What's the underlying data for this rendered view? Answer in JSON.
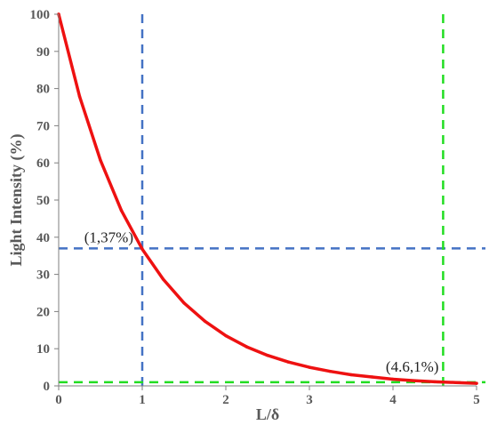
{
  "chart_data": {
    "type": "line",
    "xlabel": "L/δ",
    "ylabel": "Light Intensity  (%)",
    "xlim": [
      0,
      5
    ],
    "ylim": [
      0,
      100
    ],
    "x_ticks": [
      "0",
      "1",
      "2",
      "3",
      "4",
      "5"
    ],
    "y_ticks": [
      "0",
      "10",
      "20",
      "30",
      "40",
      "50",
      "60",
      "70",
      "80",
      "90",
      "100"
    ],
    "grid": false,
    "series": [
      {
        "color": "#ee1111",
        "x": [
          0,
          0.25,
          0.5,
          0.75,
          1,
          1.25,
          1.5,
          1.75,
          2,
          2.25,
          2.5,
          2.75,
          3,
          3.25,
          3.5,
          3.75,
          4,
          4.25,
          4.5,
          4.75,
          5
        ],
        "y": [
          100,
          77.9,
          60.7,
          47.2,
          36.8,
          28.7,
          22.3,
          17.4,
          13.5,
          10.5,
          8.2,
          6.4,
          5.0,
          3.9,
          3.0,
          2.4,
          1.8,
          1.4,
          1.1,
          0.9,
          0.7
        ]
      }
    ],
    "reference_lines": [
      {
        "orientation": "vertical",
        "value": 1,
        "color": "#4472c4"
      },
      {
        "orientation": "horizontal",
        "value": 37,
        "color": "#4472c4"
      },
      {
        "orientation": "vertical",
        "value": 4.6,
        "color": "#22dd22"
      },
      {
        "orientation": "horizontal",
        "value": 1,
        "color": "#22dd22"
      }
    ],
    "annotations": [
      {
        "text": "(1,37%)",
        "x": 1,
        "y": 37
      },
      {
        "text": "(4.6,1%)",
        "x": 4.6,
        "y": 1
      }
    ]
  }
}
